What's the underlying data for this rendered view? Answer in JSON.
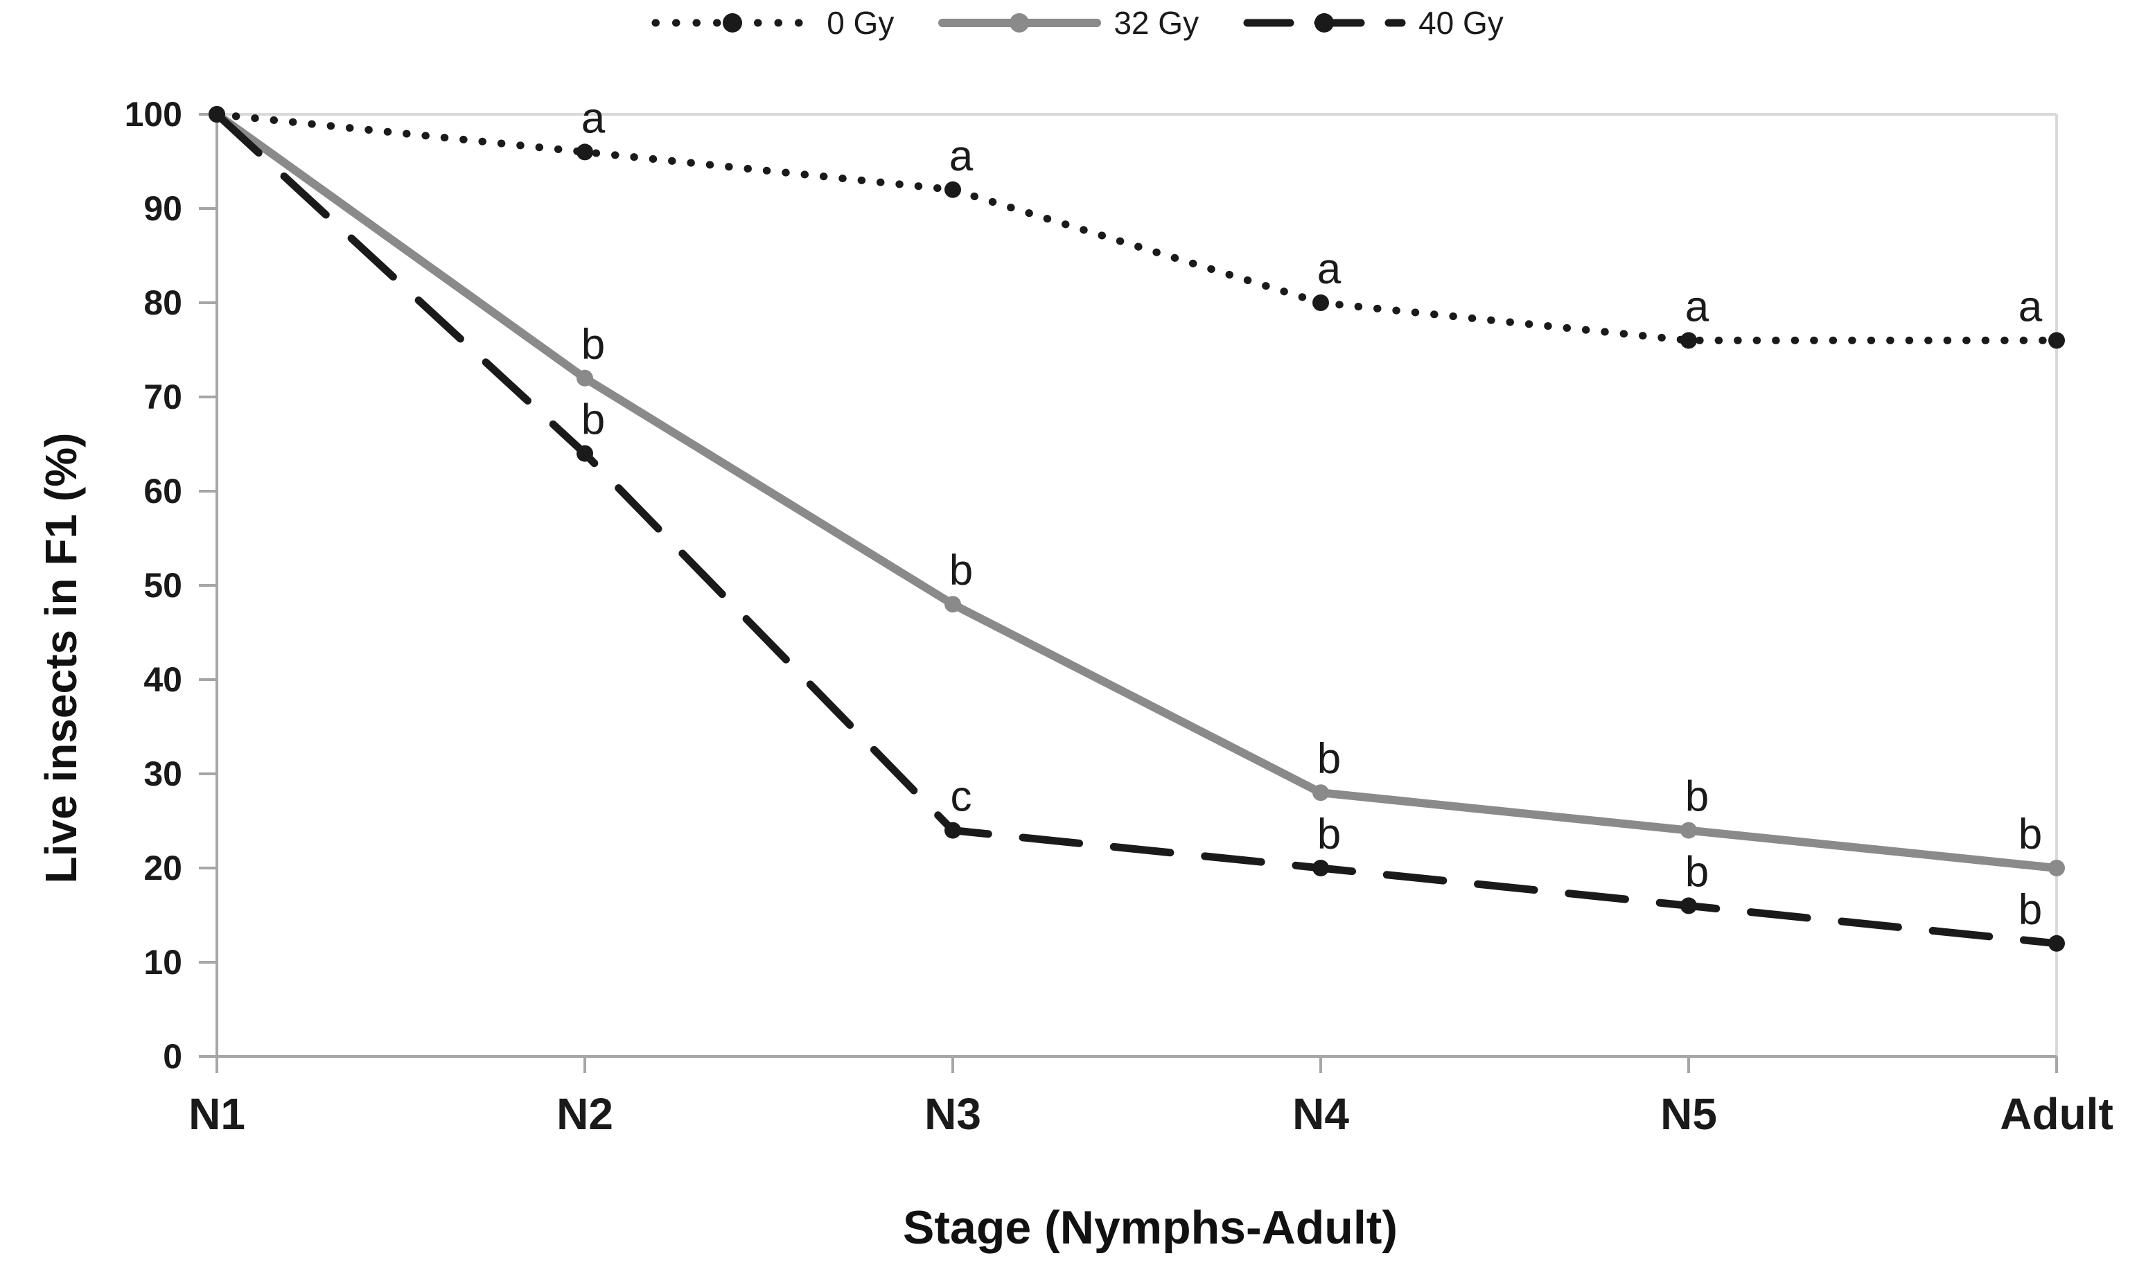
{
  "chart_data": {
    "type": "line",
    "title": "",
    "categories": [
      "N1",
      "N2",
      "N3",
      "N4",
      "N5",
      "Adult"
    ],
    "xlabel": "Stage (Nymphs-Adult)",
    "ylabel": "Live insects in F1 (%)",
    "ylim": [
      0,
      100
    ],
    "yticks": [
      0,
      10,
      20,
      30,
      40,
      50,
      60,
      70,
      80,
      90,
      100
    ],
    "grid": false,
    "legend_position": "top-center",
    "series": [
      {
        "name": "0 Gy",
        "line_style": "dotted",
        "color": "#1a1a1a",
        "values": [
          100,
          96,
          92,
          80,
          76,
          76
        ],
        "point_labels": [
          "",
          "a",
          "a",
          "a",
          "a",
          "a"
        ]
      },
      {
        "name": "32 Gy",
        "line_style": "solid",
        "color": "#8a8a8a",
        "values": [
          100,
          72,
          48,
          28,
          24,
          20
        ],
        "point_labels": [
          "",
          "b",
          "b",
          "b",
          "b",
          "b"
        ]
      },
      {
        "name": "40 Gy",
        "line_style": "dashed",
        "color": "#1a1a1a",
        "values": [
          100,
          64,
          24,
          20,
          16,
          12
        ],
        "point_labels": [
          "",
          "b",
          "c",
          "b",
          "b",
          "b"
        ]
      }
    ]
  },
  "colors": {
    "background": "#ffffff",
    "text": "#1a1a1a",
    "axis_line": "#a6a6a6",
    "plot_border": "#d9d9d9",
    "gray_series": "#8a8a8a"
  }
}
